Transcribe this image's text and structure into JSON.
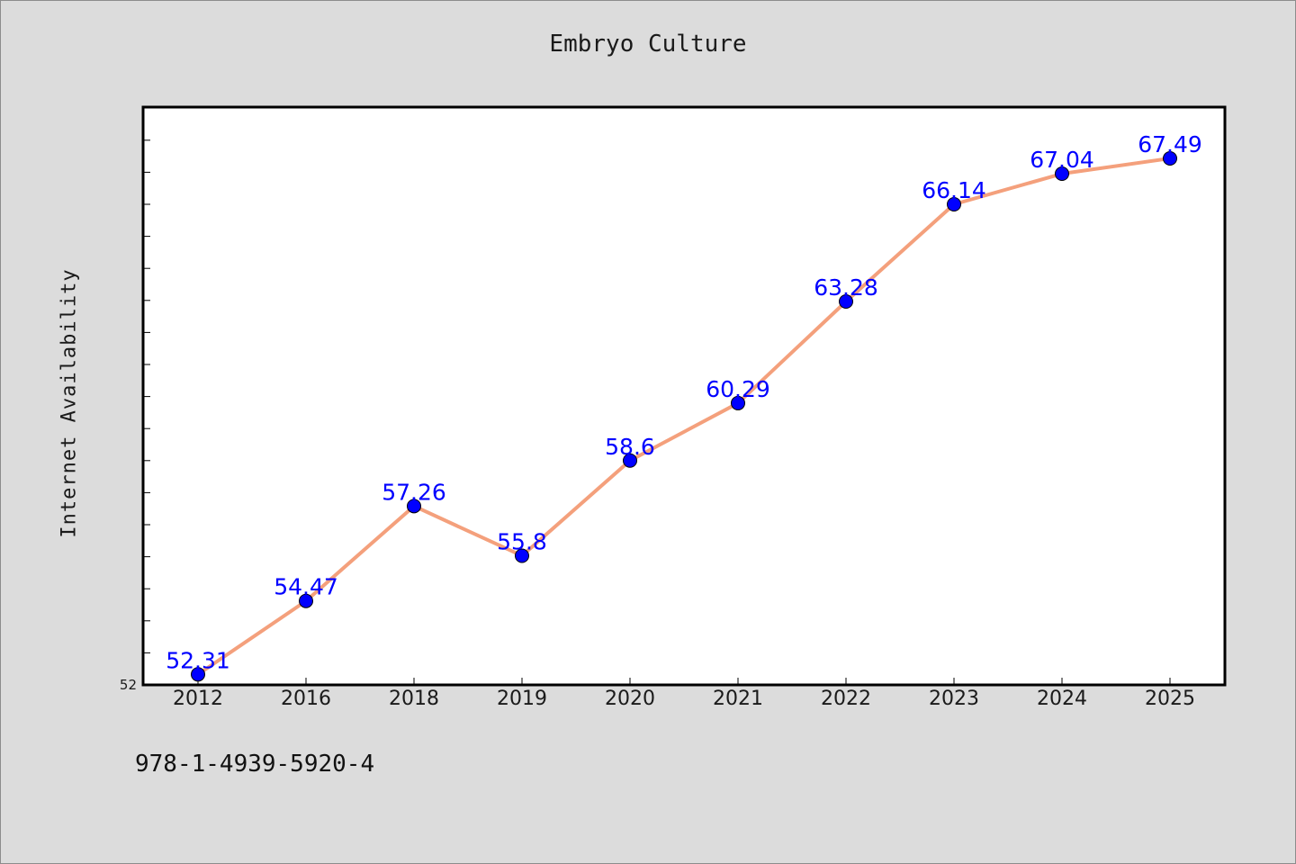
{
  "footer": {
    "code": "978-1-4939-5920-4"
  },
  "colors": {
    "background": "#dcdcdc",
    "plot_background": "#ffffff",
    "line": "#f4a07c",
    "marker": "#0000ff",
    "data_label": "#0000ff"
  },
  "chart_data": {
    "type": "line",
    "title": "Embryo Culture",
    "xlabel": "",
    "ylabel": "Internet Availability",
    "categories": [
      "2012",
      "2016",
      "2018",
      "2019",
      "2020",
      "2021",
      "2022",
      "2023",
      "2024",
      "2025"
    ],
    "series": [
      {
        "values": [
          52.31,
          54.47,
          57.26,
          55.8,
          58.6,
          60.29,
          63.28,
          66.14,
          67.04,
          67.49
        ],
        "data_labels": [
          "52.31",
          "54.47",
          "57.26",
          "55.8",
          "58.6",
          "60.29",
          "63.28",
          "66.14",
          "67.04",
          "67.49"
        ]
      }
    ],
    "y_tick_labels": [
      "52"
    ],
    "ylim": [
      52,
      69
    ],
    "grid": false,
    "legend": "none"
  }
}
